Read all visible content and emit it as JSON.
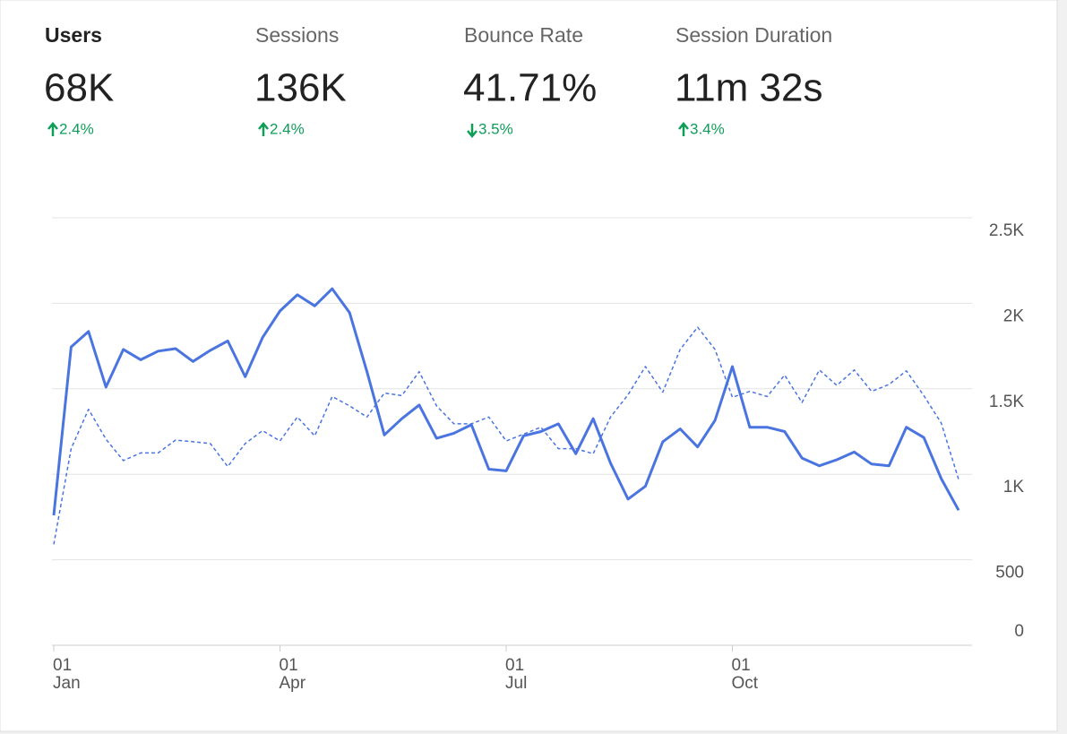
{
  "metrics": [
    {
      "label": "Users",
      "value": "68K",
      "change": "2.4%",
      "direction": "up",
      "selected": true
    },
    {
      "label": "Sessions",
      "value": "136K",
      "change": "2.4%",
      "direction": "up",
      "selected": false
    },
    {
      "label": "Bounce Rate",
      "value": "41.71%",
      "change": "3.5%",
      "direction": "down",
      "selected": false
    },
    {
      "label": "Session Duration",
      "value": "11m 32s",
      "change": "3.4%",
      "direction": "up",
      "selected": false
    }
  ],
  "chart_data": {
    "type": "line",
    "categories": [
      "01 Jan",
      null,
      null,
      null,
      null,
      null,
      null,
      null,
      null,
      null,
      null,
      null,
      null,
      "01 Apr",
      null,
      null,
      null,
      null,
      null,
      null,
      null,
      null,
      null,
      null,
      null,
      null,
      "01 Jul",
      null,
      null,
      null,
      null,
      null,
      null,
      null,
      null,
      null,
      null,
      null,
      null,
      "01 Oct",
      null,
      null,
      null,
      null,
      null,
      null,
      null,
      null,
      null,
      null,
      null,
      null,
      null
    ],
    "series": [
      {
        "color": "#4a74e0",
        "dashed": false,
        "values": [
          760,
          1745,
          1835,
          1510,
          1730,
          1670,
          1720,
          1735,
          1660,
          1725,
          1780,
          1570,
          1800,
          1955,
          2050,
          1985,
          2085,
          1945,
          1600,
          1230,
          1325,
          1405,
          1210,
          1240,
          1290,
          1030,
          1020,
          1225,
          1250,
          1295,
          1120,
          1325,
          1065,
          855,
          930,
          1190,
          1265,
          1160,
          1315,
          1630,
          1275,
          1275,
          1250,
          1095,
          1050,
          1085,
          1130,
          1060,
          1050,
          1275,
          1215,
          975,
          790
        ]
      },
      {
        "color": "#4a74e0",
        "dashed": true,
        "values": [
          590,
          1150,
          1380,
          1205,
          1080,
          1125,
          1125,
          1200,
          1190,
          1180,
          1045,
          1180,
          1255,
          1195,
          1335,
          1225,
          1455,
          1400,
          1335,
          1475,
          1460,
          1600,
          1400,
          1295,
          1295,
          1335,
          1195,
          1235,
          1275,
          1150,
          1150,
          1120,
          1335,
          1465,
          1630,
          1480,
          1730,
          1860,
          1730,
          1450,
          1485,
          1455,
          1580,
          1420,
          1610,
          1520,
          1610,
          1485,
          1525,
          1605,
          1460,
          1300,
          970
        ]
      }
    ],
    "ylim": [
      0,
      2500
    ],
    "yticks": [
      0,
      500,
      {
        "value": 1000,
        "label": "1K"
      },
      {
        "value": 1500,
        "label": "1.5K"
      },
      {
        "value": 2000,
        "label": "2K"
      },
      {
        "value": 2500,
        "label": "2.5K"
      }
    ],
    "grid": true
  }
}
